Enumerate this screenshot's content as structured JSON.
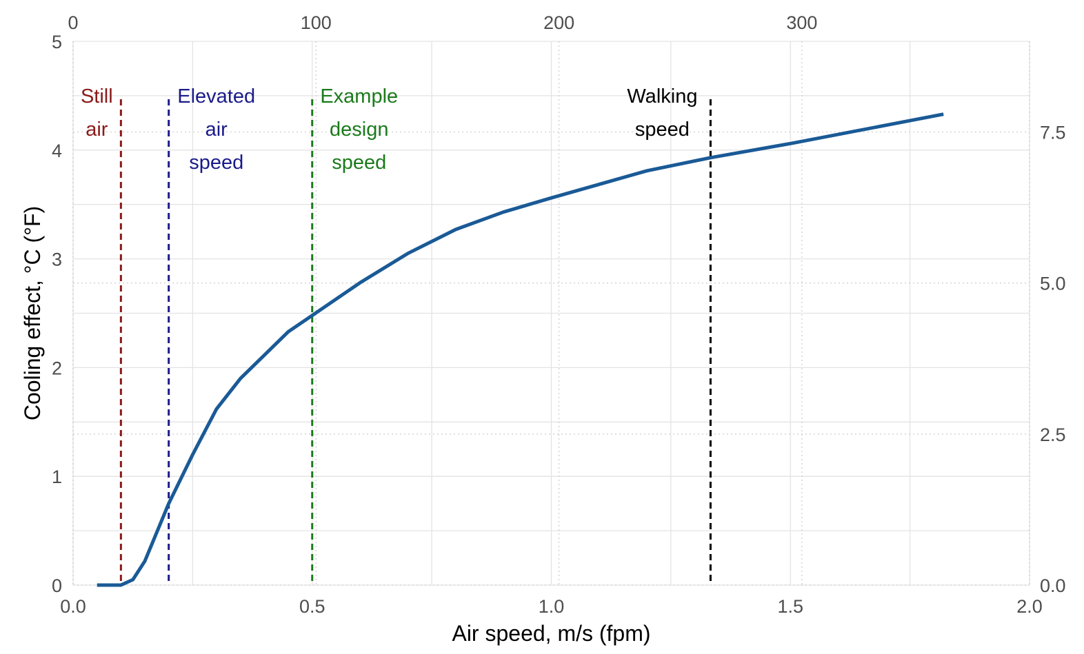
{
  "chart_data": {
    "type": "line",
    "title": "",
    "xlabel": "Air speed, m/s (fpm)",
    "ylabel": "Cooling effect, °C (°F)",
    "xlim": [
      0,
      2.0
    ],
    "ylim": [
      0,
      5
    ],
    "x_ticks": [
      "0.0",
      "0.5",
      "1.0",
      "1.5",
      "2.0"
    ],
    "x_tick_values": [
      0,
      0.5,
      1.0,
      1.5,
      2.0
    ],
    "y_ticks": [
      "0",
      "1",
      "2",
      "3",
      "4",
      "5"
    ],
    "y_tick_values": [
      0,
      1,
      2,
      3,
      4,
      5
    ],
    "x2_ticks": [
      "0",
      "100",
      "200",
      "300"
    ],
    "x2_tick_values": [
      0,
      100,
      200,
      300
    ],
    "y2_ticks": [
      "0.0",
      "2.5",
      "5.0",
      "7.5"
    ],
    "y2_tick_values": [
      0,
      2.5,
      5.0,
      7.5
    ],
    "grid": true,
    "series": [
      {
        "color": "#1a5a96",
        "x": [
          0.05,
          0.1,
          0.125,
          0.15,
          0.2,
          0.25,
          0.3,
          0.35,
          0.45,
          0.5,
          0.6,
          0.7,
          0.8,
          0.9,
          1.0,
          1.2,
          1.333,
          1.5,
          1.82
        ],
        "y": [
          0,
          0,
          0.05,
          0.22,
          0.75,
          1.2,
          1.62,
          1.9,
          2.33,
          2.48,
          2.78,
          3.05,
          3.27,
          3.43,
          3.56,
          3.81,
          3.93,
          4.06,
          4.33
        ]
      }
    ],
    "reference_lines": [
      {
        "x": 0.1,
        "color": "#8b1a1a",
        "label": [
          "Still",
          "air"
        ]
      },
      {
        "x": 0.2,
        "color": "#1a1a8b",
        "label": [
          "Elevated",
          "air",
          "speed"
        ]
      },
      {
        "x": 0.5,
        "color": "#1a7a1a",
        "label": [
          "Example",
          "design",
          "speed"
        ]
      },
      {
        "x": 1.333,
        "color": "#000000",
        "label": [
          "Walking",
          "speed"
        ]
      }
    ]
  }
}
